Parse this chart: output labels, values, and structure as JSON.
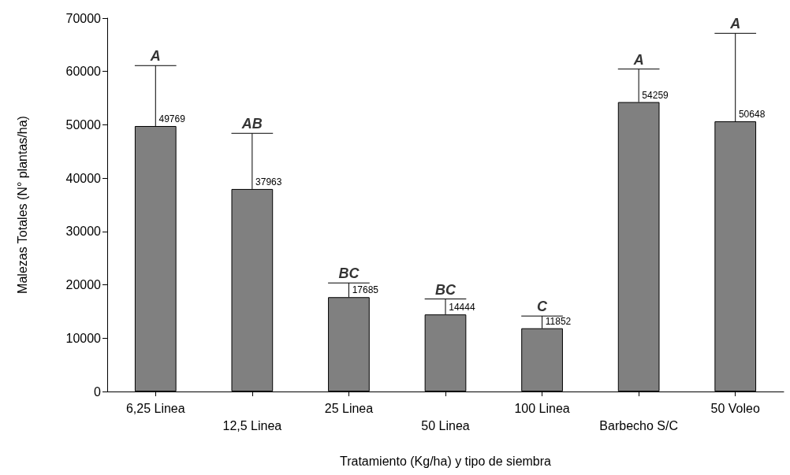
{
  "chart_data": {
    "type": "bar",
    "xlabel": "Tratamiento (Kg/ha) y tipo de siembra",
    "ylabel": "Malezas Totales (N° plantas/ha)",
    "categories": [
      "6,25 Linea",
      "12,5 Linea",
      "25 Linea",
      "50 Linea",
      "100 Linea",
      "Barbecho S/C",
      "50 Voleo"
    ],
    "values": [
      49769,
      37963,
      17685,
      14444,
      11852,
      54259,
      50648
    ],
    "errors": [
      [
        49769,
        61100
      ],
      [
        37963,
        48400
      ],
      [
        17685,
        20350
      ],
      [
        14444,
        17350
      ],
      [
        11852,
        14150
      ],
      [
        54259,
        60450
      ],
      [
        50648,
        67150
      ]
    ],
    "color": "#808080",
    "data_labels": true,
    "ylim": [
      0,
      70000
    ],
    "yticks": [
      0,
      10000,
      20000,
      30000,
      40000,
      50000,
      60000,
      70000
    ],
    "grid": false,
    "annotations": [
      "A",
      "AB",
      "BC",
      "BC",
      "C",
      "A",
      "A"
    ]
  }
}
